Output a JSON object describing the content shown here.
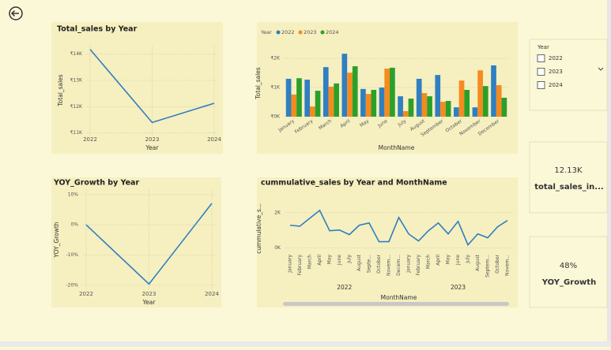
{
  "chart_data": [
    {
      "type": "line",
      "title": "Total_sales by Year",
      "x_label": "Year",
      "y_label": "Total_sales",
      "categories": [
        "2022",
        "2023",
        "2024"
      ],
      "values": [
        14180,
        11400,
        12130
      ],
      "color": "#2f7fc1",
      "ylim": [
        10900,
        14350
      ],
      "yticks": [
        {
          "value": 11000,
          "label": "₹11K"
        },
        {
          "value": 12000,
          "label": "₹12K"
        },
        {
          "value": 13000,
          "label": "₹13K"
        },
        {
          "value": 14000,
          "label": "₹14K"
        }
      ],
      "grid": true
    },
    {
      "type": "line",
      "title": "YOY_Growth by Year",
      "x_label": "Year",
      "y_label": "YOY_Growth",
      "categories": [
        "2022",
        "2023",
        "2024"
      ],
      "values": [
        0,
        -19.6,
        7.1
      ],
      "color": "#2f7fc1",
      "ylim": [
        -21.6,
        11.8
      ],
      "yticks": [
        {
          "value": -20,
          "label": "-20%"
        },
        {
          "value": -10,
          "label": "-10%"
        },
        {
          "value": 0,
          "label": "0%"
        },
        {
          "value": 10,
          "label": "10%"
        }
      ],
      "grid": true
    },
    {
      "type": "bar",
      "x_label": "MonthName",
      "y_label": "Total_sales",
      "legend_title": "Year",
      "categories": [
        "January",
        "February",
        "March",
        "April",
        "May",
        "June",
        "July",
        "August",
        "September",
        "October",
        "November",
        "December"
      ],
      "series": [
        {
          "name": "2022",
          "color": "#2f7fc1",
          "values": [
            1300,
            1270,
            1700,
            2160,
            950,
            1000,
            700,
            1300,
            1430,
            320,
            320,
            1760
          ]
        },
        {
          "name": "2023",
          "color": "#f58a1f",
          "values": [
            760,
            350,
            1030,
            1510,
            780,
            1650,
            190,
            810,
            510,
            1240,
            1590,
            1080
          ]
        },
        {
          "name": "2024",
          "color": "#2aa02a",
          "values": [
            1320,
            890,
            1140,
            1730,
            920,
            1680,
            620,
            700,
            540,
            920,
            1050,
            650
          ]
        }
      ],
      "ylim": [
        0,
        2300
      ],
      "yticks": [
        {
          "value": 0,
          "label": "₹0K"
        },
        {
          "value": 1000,
          "label": "₹1K"
        },
        {
          "value": 2000,
          "label": "₹2K"
        }
      ],
      "grid": true
    },
    {
      "type": "line",
      "title": "cummulative_sales by Year and MonthName",
      "x_label": "MonthName",
      "y_label": "cummulative_s...",
      "categories": [
        "January",
        "February",
        "March",
        "April",
        "May",
        "June",
        "July",
        "August",
        "Septe...",
        "October",
        "Novem...",
        "Decem...",
        "January",
        "February",
        "March",
        "April",
        "May",
        "June",
        "July",
        "August",
        "Septem...",
        "October",
        "Novem..."
      ],
      "x_groups": [
        "2022",
        "2023"
      ],
      "values": [
        1290,
        1240,
        1690,
        2130,
        980,
        1020,
        760,
        1290,
        1420,
        360,
        360,
        1730,
        800,
        400,
        980,
        1420,
        800,
        1510,
        180,
        800,
        580,
        1200,
        1560
      ],
      "color": "#2f7fc1",
      "ylim": [
        -150,
        2350
      ],
      "yticks": [
        {
          "value": 0,
          "label": "0K"
        },
        {
          "value": 2000,
          "label": "2K"
        }
      ],
      "grid": true
    }
  ],
  "slicer": {
    "title": "Year",
    "options": [
      "2022",
      "2023",
      "2024"
    ]
  },
  "cards": [
    {
      "value": "12.13K",
      "label": "total_sales_in..."
    },
    {
      "value": "48%",
      "label": "YOY_Growth"
    }
  ]
}
